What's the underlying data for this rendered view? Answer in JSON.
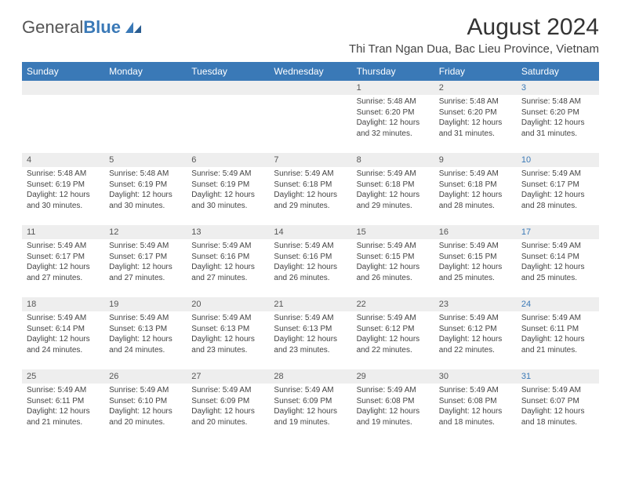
{
  "logo": {
    "text1": "General",
    "text2": "Blue"
  },
  "title": "August 2024",
  "location": "Thi Tran Ngan Dua, Bac Lieu Province, Vietnam",
  "headers": [
    "Sunday",
    "Monday",
    "Tuesday",
    "Wednesday",
    "Thursday",
    "Friday",
    "Saturday"
  ],
  "header_bg": "#3a79b7",
  "daynum_bg": "#eeeeee",
  "saturday_color": "#3a79b7",
  "weeks": [
    [
      null,
      null,
      null,
      null,
      {
        "n": "1",
        "sr": "5:48 AM",
        "ss": "6:20 PM",
        "dl": "12 hours and 32 minutes."
      },
      {
        "n": "2",
        "sr": "5:48 AM",
        "ss": "6:20 PM",
        "dl": "12 hours and 31 minutes."
      },
      {
        "n": "3",
        "sr": "5:48 AM",
        "ss": "6:20 PM",
        "dl": "12 hours and 31 minutes."
      }
    ],
    [
      {
        "n": "4",
        "sr": "5:48 AM",
        "ss": "6:19 PM",
        "dl": "12 hours and 30 minutes."
      },
      {
        "n": "5",
        "sr": "5:48 AM",
        "ss": "6:19 PM",
        "dl": "12 hours and 30 minutes."
      },
      {
        "n": "6",
        "sr": "5:49 AM",
        "ss": "6:19 PM",
        "dl": "12 hours and 30 minutes."
      },
      {
        "n": "7",
        "sr": "5:49 AM",
        "ss": "6:18 PM",
        "dl": "12 hours and 29 minutes."
      },
      {
        "n": "8",
        "sr": "5:49 AM",
        "ss": "6:18 PM",
        "dl": "12 hours and 29 minutes."
      },
      {
        "n": "9",
        "sr": "5:49 AM",
        "ss": "6:18 PM",
        "dl": "12 hours and 28 minutes."
      },
      {
        "n": "10",
        "sr": "5:49 AM",
        "ss": "6:17 PM",
        "dl": "12 hours and 28 minutes."
      }
    ],
    [
      {
        "n": "11",
        "sr": "5:49 AM",
        "ss": "6:17 PM",
        "dl": "12 hours and 27 minutes."
      },
      {
        "n": "12",
        "sr": "5:49 AM",
        "ss": "6:17 PM",
        "dl": "12 hours and 27 minutes."
      },
      {
        "n": "13",
        "sr": "5:49 AM",
        "ss": "6:16 PM",
        "dl": "12 hours and 27 minutes."
      },
      {
        "n": "14",
        "sr": "5:49 AM",
        "ss": "6:16 PM",
        "dl": "12 hours and 26 minutes."
      },
      {
        "n": "15",
        "sr": "5:49 AM",
        "ss": "6:15 PM",
        "dl": "12 hours and 26 minutes."
      },
      {
        "n": "16",
        "sr": "5:49 AM",
        "ss": "6:15 PM",
        "dl": "12 hours and 25 minutes."
      },
      {
        "n": "17",
        "sr": "5:49 AM",
        "ss": "6:14 PM",
        "dl": "12 hours and 25 minutes."
      }
    ],
    [
      {
        "n": "18",
        "sr": "5:49 AM",
        "ss": "6:14 PM",
        "dl": "12 hours and 24 minutes."
      },
      {
        "n": "19",
        "sr": "5:49 AM",
        "ss": "6:13 PM",
        "dl": "12 hours and 24 minutes."
      },
      {
        "n": "20",
        "sr": "5:49 AM",
        "ss": "6:13 PM",
        "dl": "12 hours and 23 minutes."
      },
      {
        "n": "21",
        "sr": "5:49 AM",
        "ss": "6:13 PM",
        "dl": "12 hours and 23 minutes."
      },
      {
        "n": "22",
        "sr": "5:49 AM",
        "ss": "6:12 PM",
        "dl": "12 hours and 22 minutes."
      },
      {
        "n": "23",
        "sr": "5:49 AM",
        "ss": "6:12 PM",
        "dl": "12 hours and 22 minutes."
      },
      {
        "n": "24",
        "sr": "5:49 AM",
        "ss": "6:11 PM",
        "dl": "12 hours and 21 minutes."
      }
    ],
    [
      {
        "n": "25",
        "sr": "5:49 AM",
        "ss": "6:11 PM",
        "dl": "12 hours and 21 minutes."
      },
      {
        "n": "26",
        "sr": "5:49 AM",
        "ss": "6:10 PM",
        "dl": "12 hours and 20 minutes."
      },
      {
        "n": "27",
        "sr": "5:49 AM",
        "ss": "6:09 PM",
        "dl": "12 hours and 20 minutes."
      },
      {
        "n": "28",
        "sr": "5:49 AM",
        "ss": "6:09 PM",
        "dl": "12 hours and 19 minutes."
      },
      {
        "n": "29",
        "sr": "5:49 AM",
        "ss": "6:08 PM",
        "dl": "12 hours and 19 minutes."
      },
      {
        "n": "30",
        "sr": "5:49 AM",
        "ss": "6:08 PM",
        "dl": "12 hours and 18 minutes."
      },
      {
        "n": "31",
        "sr": "5:49 AM",
        "ss": "6:07 PM",
        "dl": "12 hours and 18 minutes."
      }
    ]
  ],
  "labels": {
    "sunrise": "Sunrise: ",
    "sunset": "Sunset: ",
    "daylight": "Daylight: "
  }
}
